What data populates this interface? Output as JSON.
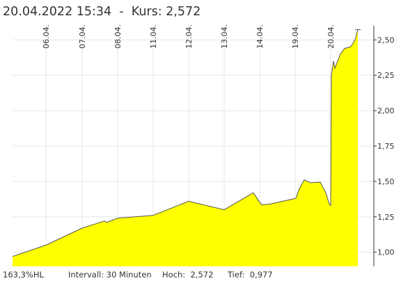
{
  "header": {
    "title": "20.04.2022 15:34  -  Kurs: 2,572"
  },
  "footer": {
    "performance": "163,3%HL",
    "interval": "Intervall: 30 Minuten",
    "high": "Hoch:  2,572",
    "low": "Tief:  0,977"
  },
  "colors": {
    "area_fill": "#ffff00",
    "line": "#555555",
    "grid": "#e6e6e6",
    "axis": "#333333"
  },
  "chart_data": {
    "type": "area",
    "title": "20.04.2022 15:34  -  Kurs: 2,572",
    "xlabel": "",
    "ylabel": "",
    "grid": true,
    "y_axis_side": "right",
    "ylim": [
      0.9,
      2.6
    ],
    "y_ticks": [
      "1,00",
      "1,25",
      "1,50",
      "1,75",
      "2,00",
      "2,25",
      "2,50"
    ],
    "y_tick_values": [
      1.0,
      1.25,
      1.5,
      1.75,
      2.0,
      2.25,
      2.5
    ],
    "x_ticks": [
      "06.04.",
      "07.04.",
      "08.04.",
      "11.04.",
      "12.04.",
      "13.04.",
      "14.04.",
      "19.04.",
      "20.04."
    ],
    "series": [
      {
        "values": [
          0.97,
          1.05,
          1.17,
          1.22,
          1.21,
          1.24,
          1.26,
          1.36,
          1.3,
          1.42,
          1.36,
          1.335,
          1.34,
          1.38,
          1.45,
          1.51,
          1.49,
          1.495,
          1.42,
          1.34,
          1.33,
          2.25,
          2.35,
          2.3,
          2.4,
          2.44,
          2.45,
          2.46,
          2.5,
          2.572
        ]
      }
    ]
  }
}
